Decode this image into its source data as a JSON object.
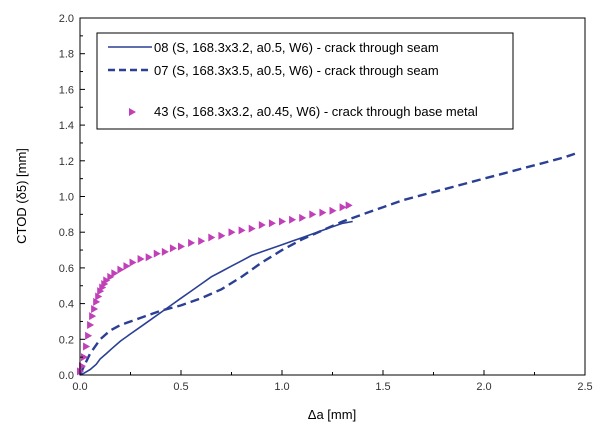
{
  "chart_data": {
    "type": "scatter",
    "title": "",
    "xlabel": "Δa [mm]",
    "ylabel": "CTOD (δ5) [mm]",
    "xlim": [
      0.0,
      2.5
    ],
    "ylim": [
      0.0,
      2.0
    ],
    "x_ticks": [
      "0.0",
      "0.5",
      "1.0",
      "1.5",
      "2.0",
      "2.5"
    ],
    "y_ticks": [
      "0.0",
      "0.2",
      "0.4",
      "0.6",
      "0.8",
      "1.0",
      "1.2",
      "1.4",
      "1.6",
      "1.8",
      "2.0"
    ],
    "grid": false,
    "legend_position": "top-right",
    "series": [
      {
        "name": "08 (S, 168.3x3.2, a0.5, W6) - crack through seam",
        "style": "solid-line",
        "color": "#2b3f94",
        "x": [
          0.0,
          0.02,
          0.05,
          0.08,
          0.1,
          0.13,
          0.16,
          0.2,
          0.25,
          0.3,
          0.35,
          0.4,
          0.45,
          0.5,
          0.55,
          0.6,
          0.65,
          0.7,
          0.75,
          0.8,
          0.85,
          0.9,
          0.95,
          1.0,
          1.05,
          1.1,
          1.15,
          1.2,
          1.25,
          1.3,
          1.35
        ],
        "y": [
          0.0,
          0.01,
          0.03,
          0.06,
          0.09,
          0.12,
          0.15,
          0.19,
          0.23,
          0.27,
          0.31,
          0.35,
          0.39,
          0.43,
          0.47,
          0.51,
          0.55,
          0.58,
          0.61,
          0.64,
          0.67,
          0.69,
          0.71,
          0.73,
          0.75,
          0.77,
          0.79,
          0.81,
          0.83,
          0.85,
          0.86
        ]
      },
      {
        "name": "07 (S, 168.3x3.5, a0.5, W6)  - crack through seam",
        "style": "dashed-line",
        "color": "#2b3f94",
        "x": [
          0.0,
          0.02,
          0.05,
          0.1,
          0.15,
          0.2,
          0.3,
          0.4,
          0.5,
          0.6,
          0.7,
          0.8,
          0.9,
          1.0,
          1.1,
          1.2,
          1.3,
          1.4,
          1.5,
          1.6,
          1.7,
          1.8,
          1.9,
          2.0,
          2.1,
          2.2,
          2.3,
          2.4,
          2.45
        ],
        "y": [
          0.0,
          0.05,
          0.12,
          0.2,
          0.25,
          0.28,
          0.32,
          0.36,
          0.39,
          0.43,
          0.48,
          0.55,
          0.63,
          0.7,
          0.76,
          0.81,
          0.86,
          0.9,
          0.94,
          0.98,
          1.01,
          1.04,
          1.07,
          1.1,
          1.13,
          1.16,
          1.19,
          1.22,
          1.24
        ]
      },
      {
        "name": "43 (S, 168.3x3.2, a0.45, W6)  - crack through base metal",
        "style": "triangle-markers",
        "color": "#c040b8",
        "x": [
          0.0,
          0.01,
          0.02,
          0.03,
          0.04,
          0.05,
          0.06,
          0.07,
          0.08,
          0.09,
          0.1,
          0.11,
          0.12,
          0.13,
          0.15,
          0.17,
          0.2,
          0.23,
          0.26,
          0.3,
          0.34,
          0.38,
          0.42,
          0.46,
          0.5,
          0.55,
          0.6,
          0.65,
          0.7,
          0.75,
          0.8,
          0.85,
          0.9,
          0.95,
          1.0,
          1.05,
          1.1,
          1.15,
          1.2,
          1.25,
          1.3,
          1.33
        ],
        "y": [
          0.02,
          0.05,
          0.1,
          0.16,
          0.22,
          0.28,
          0.33,
          0.37,
          0.41,
          0.44,
          0.47,
          0.49,
          0.51,
          0.53,
          0.55,
          0.57,
          0.59,
          0.61,
          0.63,
          0.65,
          0.66,
          0.68,
          0.69,
          0.71,
          0.72,
          0.74,
          0.75,
          0.77,
          0.78,
          0.8,
          0.81,
          0.82,
          0.84,
          0.85,
          0.86,
          0.87,
          0.88,
          0.9,
          0.91,
          0.92,
          0.94,
          0.95
        ]
      }
    ]
  }
}
